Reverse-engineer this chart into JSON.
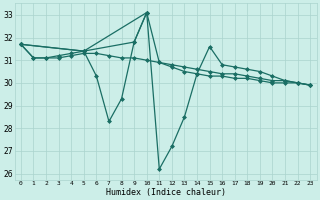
{
  "xlabel": "Humidex (Indice chaleur)",
  "background_color": "#cceee8",
  "grid_color": "#aad4ce",
  "line_color": "#1a6e64",
  "x_ticks": [
    0,
    1,
    2,
    3,
    4,
    5,
    6,
    7,
    8,
    9,
    10,
    11,
    12,
    13,
    14,
    15,
    16,
    17,
    18,
    19,
    20,
    21,
    22,
    23
  ],
  "ylim": [
    25.7,
    33.5
  ],
  "xlim": [
    -0.5,
    23.5
  ],
  "series": [
    {
      "x": [
        0,
        1,
        2,
        3,
        4,
        5,
        6,
        7,
        8,
        9,
        10,
        11,
        12,
        13,
        14,
        15,
        16,
        17,
        18,
        19,
        20,
        21,
        22,
        23
      ],
      "y": [
        31.7,
        31.1,
        31.1,
        31.1,
        31.2,
        31.3,
        31.3,
        31.2,
        31.1,
        31.1,
        31.0,
        30.9,
        30.8,
        30.7,
        30.6,
        30.5,
        30.4,
        30.4,
        30.3,
        30.2,
        30.1,
        30.1,
        30.0,
        29.9
      ]
    },
    {
      "x": [
        0,
        1,
        2,
        3,
        4,
        5,
        6,
        7,
        8,
        9,
        10,
        11,
        12,
        13,
        14,
        15,
        16,
        17,
        18,
        19,
        20,
        21,
        22,
        23
      ],
      "y": [
        31.7,
        31.1,
        31.1,
        31.2,
        31.3,
        31.4,
        30.3,
        28.3,
        29.3,
        31.8,
        33.1,
        30.9,
        30.7,
        30.5,
        30.4,
        30.3,
        30.3,
        30.2,
        30.2,
        30.1,
        30.0,
        30.0,
        30.0,
        29.9
      ]
    },
    {
      "x": [
        0,
        5,
        9,
        10,
        11,
        12,
        13,
        14,
        15,
        16,
        17,
        18,
        19,
        20,
        21,
        22,
        23
      ],
      "y": [
        31.7,
        31.4,
        31.8,
        33.1,
        26.2,
        27.2,
        28.5,
        30.4,
        31.6,
        30.8,
        30.7,
        30.6,
        30.5,
        30.3,
        30.1,
        30.0,
        29.9
      ]
    },
    {
      "x": [
        0,
        5,
        10
      ],
      "y": [
        31.7,
        31.4,
        33.1
      ]
    }
  ]
}
